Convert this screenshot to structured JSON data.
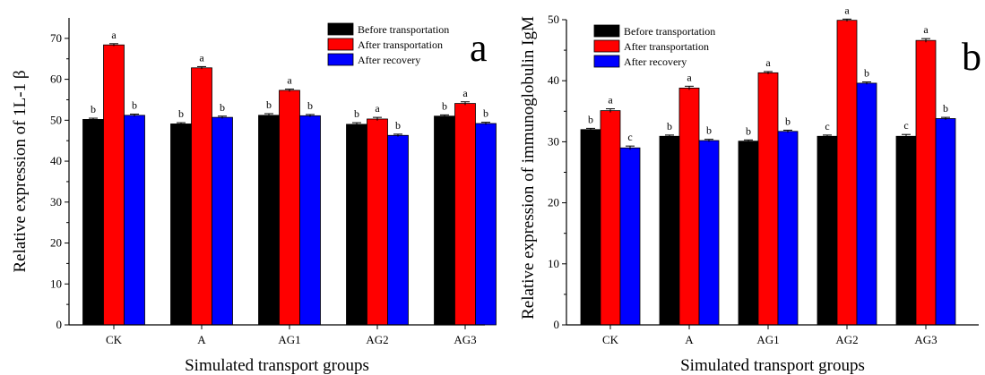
{
  "chart_data": [
    {
      "type": "bar",
      "panel_label": "a",
      "categories": [
        "CK",
        "A",
        "AG1",
        "AG2",
        "AG3"
      ],
      "series": [
        {
          "name": "Before transportation",
          "color": "#000000",
          "values": [
            50.2,
            49.1,
            51.2,
            49.0,
            51.0
          ],
          "errors": [
            0.3,
            0.3,
            0.4,
            0.4,
            0.3
          ],
          "labels": [
            "b",
            "b",
            "b",
            "b",
            "b"
          ]
        },
        {
          "name": "After transportation",
          "color": "#ff0000",
          "values": [
            68.4,
            62.8,
            57.3,
            50.3,
            54.1
          ],
          "errors": [
            0.3,
            0.3,
            0.3,
            0.4,
            0.4
          ],
          "labels": [
            "a",
            "a",
            "a",
            "a",
            "a"
          ]
        },
        {
          "name": "After recovery",
          "color": "#0000ff",
          "values": [
            51.2,
            50.7,
            51.1,
            46.3,
            49.2
          ],
          "errors": [
            0.3,
            0.3,
            0.3,
            0.3,
            0.3
          ],
          "labels": [
            "b",
            "b",
            "b",
            "b",
            "b"
          ]
        }
      ],
      "xlabel": "Simulated transport groups",
      "ylabel": "Relative expression of 1L-1 β",
      "ylim": [
        0,
        75
      ],
      "yticks": [
        0,
        10,
        20,
        30,
        40,
        50,
        60,
        70
      ],
      "grid": false,
      "legend": "top-right"
    },
    {
      "type": "bar",
      "panel_label": "b",
      "categories": [
        "CK",
        "A",
        "AG1",
        "AG2",
        "AG3"
      ],
      "series": [
        {
          "name": "Before transportation",
          "color": "#000000",
          "values": [
            32.0,
            30.9,
            30.1,
            30.9,
            30.9
          ],
          "errors": [
            0.2,
            0.2,
            0.2,
            0.2,
            0.3
          ],
          "labels": [
            "b",
            "b",
            "b",
            "c",
            "c"
          ]
        },
        {
          "name": "After transportation",
          "color": "#ff0000",
          "values": [
            35.1,
            38.8,
            41.3,
            49.9,
            46.6
          ],
          "errors": [
            0.3,
            0.3,
            0.2,
            0.2,
            0.3
          ],
          "labels": [
            "a",
            "a",
            "a",
            "a",
            "a"
          ]
        },
        {
          "name": "After recovery",
          "color": "#0000ff",
          "values": [
            29.0,
            30.2,
            31.7,
            39.6,
            33.8
          ],
          "errors": [
            0.3,
            0.2,
            0.2,
            0.2,
            0.2
          ],
          "labels": [
            "c",
            "b",
            "b",
            "b",
            "b"
          ]
        }
      ],
      "xlabel": "Simulated transport groups",
      "ylabel": "Relative expression of immunoglobulin IgM",
      "ylim": [
        0,
        50
      ],
      "yticks": [
        0,
        10,
        20,
        30,
        40,
        50
      ],
      "grid": false,
      "legend": "top-left"
    }
  ]
}
